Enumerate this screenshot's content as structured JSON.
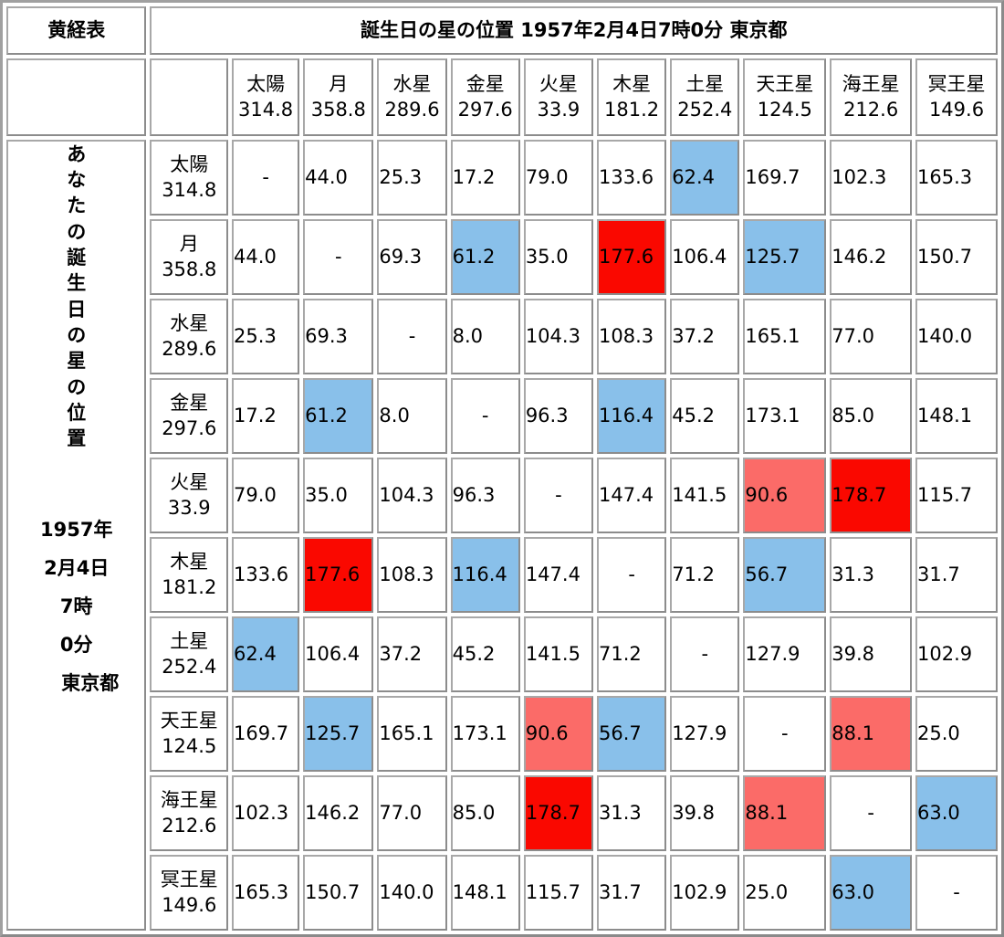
{
  "title_left": "黄経表",
  "title_main": "誕生日の星の位置 1957年2月4日7時0分 東京都",
  "side_label_chars": [
    "あ",
    "な",
    "た",
    "の",
    "誕",
    "生",
    "日",
    "の",
    "星",
    "の",
    "位",
    "置"
  ],
  "side_date_lines": [
    "1957年",
    "2月4日",
    "7時",
    "0分",
    "東京都"
  ],
  "planets": [
    {
      "name": "太陽",
      "longitude": "314.8"
    },
    {
      "name": "月",
      "longitude": "358.8"
    },
    {
      "name": "水星",
      "longitude": "289.6"
    },
    {
      "name": "金星",
      "longitude": "297.6"
    },
    {
      "name": "火星",
      "longitude": "33.9"
    },
    {
      "name": "木星",
      "longitude": "181.2"
    },
    {
      "name": "土星",
      "longitude": "252.4"
    },
    {
      "name": "天王星",
      "longitude": "124.5"
    },
    {
      "name": "海王星",
      "longitude": "212.6"
    },
    {
      "name": "冥王星",
      "longitude": "149.6"
    }
  ],
  "colors": {
    "sextile_trine": "#89c0ea",
    "opposition": "#fa0800",
    "square": "#fb6b68"
  },
  "rows": [
    {
      "cells": [
        {
          "v": "-",
          "c": ""
        },
        {
          "v": "44.0",
          "c": ""
        },
        {
          "v": "25.3",
          "c": ""
        },
        {
          "v": "17.2",
          "c": ""
        },
        {
          "v": "79.0",
          "c": ""
        },
        {
          "v": "133.6",
          "c": ""
        },
        {
          "v": "62.4",
          "c": "blue"
        },
        {
          "v": "169.7",
          "c": ""
        },
        {
          "v": "102.3",
          "c": ""
        },
        {
          "v": "165.3",
          "c": ""
        }
      ]
    },
    {
      "cells": [
        {
          "v": "44.0",
          "c": ""
        },
        {
          "v": "-",
          "c": ""
        },
        {
          "v": "69.3",
          "c": ""
        },
        {
          "v": "61.2",
          "c": "blue"
        },
        {
          "v": "35.0",
          "c": ""
        },
        {
          "v": "177.6",
          "c": "red"
        },
        {
          "v": "106.4",
          "c": ""
        },
        {
          "v": "125.7",
          "c": "blue"
        },
        {
          "v": "146.2",
          "c": ""
        },
        {
          "v": "150.7",
          "c": ""
        }
      ]
    },
    {
      "cells": [
        {
          "v": "25.3",
          "c": ""
        },
        {
          "v": "69.3",
          "c": ""
        },
        {
          "v": "-",
          "c": ""
        },
        {
          "v": "8.0",
          "c": ""
        },
        {
          "v": "104.3",
          "c": ""
        },
        {
          "v": "108.3",
          "c": ""
        },
        {
          "v": "37.2",
          "c": ""
        },
        {
          "v": "165.1",
          "c": ""
        },
        {
          "v": "77.0",
          "c": ""
        },
        {
          "v": "140.0",
          "c": ""
        }
      ]
    },
    {
      "cells": [
        {
          "v": "17.2",
          "c": ""
        },
        {
          "v": "61.2",
          "c": "blue"
        },
        {
          "v": "8.0",
          "c": ""
        },
        {
          "v": "-",
          "c": ""
        },
        {
          "v": "96.3",
          "c": ""
        },
        {
          "v": "116.4",
          "c": "blue"
        },
        {
          "v": "45.2",
          "c": ""
        },
        {
          "v": "173.1",
          "c": ""
        },
        {
          "v": "85.0",
          "c": ""
        },
        {
          "v": "148.1",
          "c": ""
        }
      ]
    },
    {
      "cells": [
        {
          "v": "79.0",
          "c": ""
        },
        {
          "v": "35.0",
          "c": ""
        },
        {
          "v": "104.3",
          "c": ""
        },
        {
          "v": "96.3",
          "c": ""
        },
        {
          "v": "-",
          "c": ""
        },
        {
          "v": "147.4",
          "c": ""
        },
        {
          "v": "141.5",
          "c": ""
        },
        {
          "v": "90.6",
          "c": "pink"
        },
        {
          "v": "178.7",
          "c": "red"
        },
        {
          "v": "115.7",
          "c": ""
        }
      ]
    },
    {
      "cells": [
        {
          "v": "133.6",
          "c": ""
        },
        {
          "v": "177.6",
          "c": "red"
        },
        {
          "v": "108.3",
          "c": ""
        },
        {
          "v": "116.4",
          "c": "blue"
        },
        {
          "v": "147.4",
          "c": ""
        },
        {
          "v": "-",
          "c": ""
        },
        {
          "v": "71.2",
          "c": ""
        },
        {
          "v": "56.7",
          "c": "blue"
        },
        {
          "v": "31.3",
          "c": ""
        },
        {
          "v": "31.7",
          "c": ""
        }
      ]
    },
    {
      "cells": [
        {
          "v": "62.4",
          "c": "blue"
        },
        {
          "v": "106.4",
          "c": ""
        },
        {
          "v": "37.2",
          "c": ""
        },
        {
          "v": "45.2",
          "c": ""
        },
        {
          "v": "141.5",
          "c": ""
        },
        {
          "v": "71.2",
          "c": ""
        },
        {
          "v": "-",
          "c": ""
        },
        {
          "v": "127.9",
          "c": ""
        },
        {
          "v": "39.8",
          "c": ""
        },
        {
          "v": "102.9",
          "c": ""
        }
      ]
    },
    {
      "cells": [
        {
          "v": "169.7",
          "c": ""
        },
        {
          "v": "125.7",
          "c": "blue"
        },
        {
          "v": "165.1",
          "c": ""
        },
        {
          "v": "173.1",
          "c": ""
        },
        {
          "v": "90.6",
          "c": "pink"
        },
        {
          "v": "56.7",
          "c": "blue"
        },
        {
          "v": "127.9",
          "c": ""
        },
        {
          "v": "-",
          "c": ""
        },
        {
          "v": "88.1",
          "c": "pink"
        },
        {
          "v": "25.0",
          "c": ""
        }
      ]
    },
    {
      "cells": [
        {
          "v": "102.3",
          "c": ""
        },
        {
          "v": "146.2",
          "c": ""
        },
        {
          "v": "77.0",
          "c": ""
        },
        {
          "v": "85.0",
          "c": ""
        },
        {
          "v": "178.7",
          "c": "red"
        },
        {
          "v": "31.3",
          "c": ""
        },
        {
          "v": "39.8",
          "c": ""
        },
        {
          "v": "88.1",
          "c": "pink"
        },
        {
          "v": "-",
          "c": ""
        },
        {
          "v": "63.0",
          "c": "blue"
        }
      ]
    },
    {
      "cells": [
        {
          "v": "165.3",
          "c": ""
        },
        {
          "v": "150.7",
          "c": ""
        },
        {
          "v": "140.0",
          "c": ""
        },
        {
          "v": "148.1",
          "c": ""
        },
        {
          "v": "115.7",
          "c": ""
        },
        {
          "v": "31.7",
          "c": ""
        },
        {
          "v": "102.9",
          "c": ""
        },
        {
          "v": "25.0",
          "c": ""
        },
        {
          "v": "63.0",
          "c": "blue"
        },
        {
          "v": "-",
          "c": ""
        }
      ]
    }
  ]
}
